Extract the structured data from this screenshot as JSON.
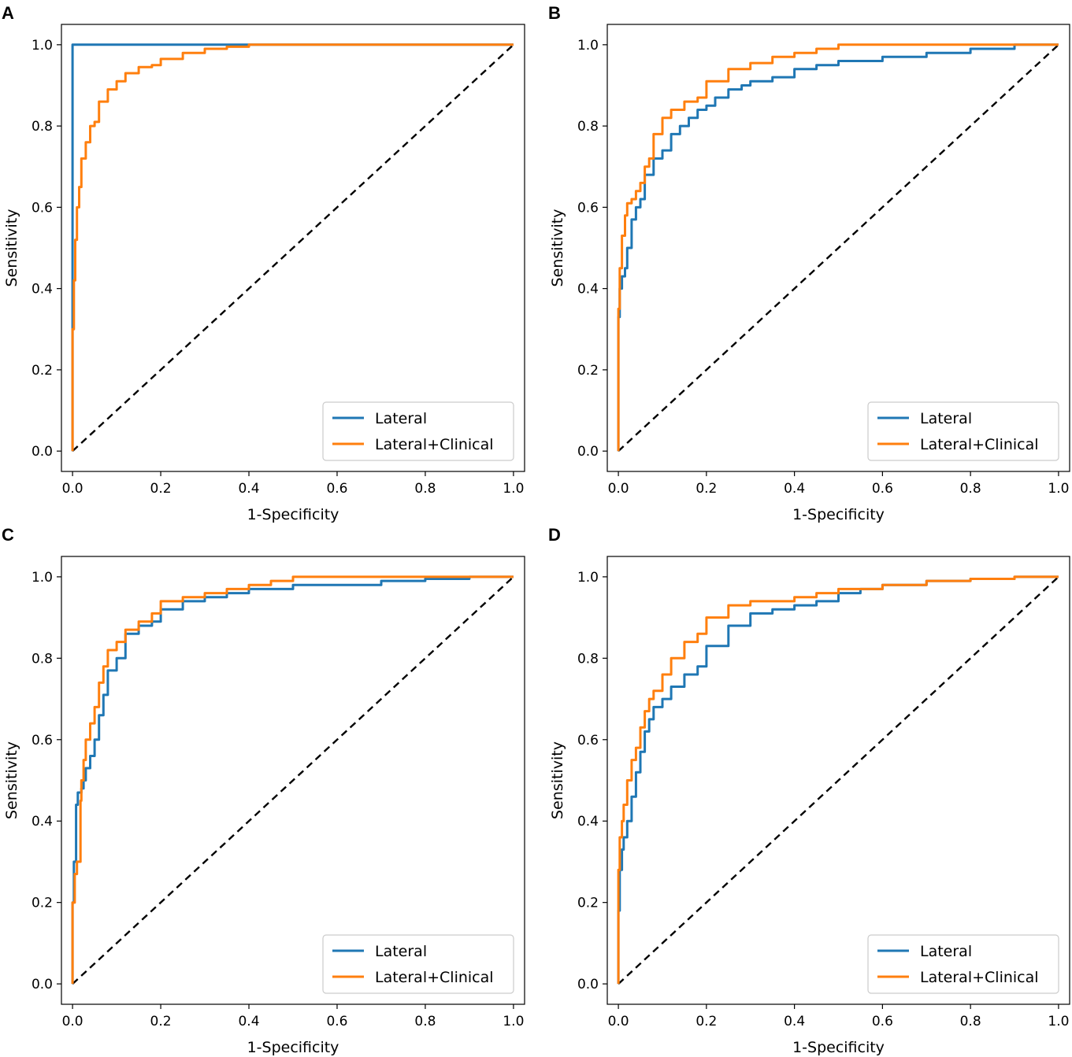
{
  "figure": {
    "colors": {
      "lateral": "#1f77b4",
      "lateral_clinical": "#ff7f0e",
      "chance": "#000000"
    }
  },
  "chart_data": [
    {
      "panel": "A",
      "type": "line",
      "xlabel": "1-Specificity",
      "ylabel": "Sensitivity",
      "xlim": [
        0,
        1
      ],
      "ylim": [
        0,
        1
      ],
      "xticks": [
        "0.0",
        "0.2",
        "0.4",
        "0.6",
        "0.8",
        "1.0"
      ],
      "yticks": [
        "0.0",
        "0.2",
        "0.4",
        "0.6",
        "0.8",
        "1.0"
      ],
      "legend": "bottom-right",
      "series": [
        {
          "name": "Lateral",
          "color": "#1f77b4",
          "x": [
            0,
            0,
            0.003,
            1
          ],
          "y": [
            0,
            1.0,
            1.0,
            1.0
          ]
        },
        {
          "name": "Lateral+Clinical",
          "color": "#ff7f0e",
          "x": [
            0,
            0.003,
            0.006,
            0.01,
            0.015,
            0.02,
            0.03,
            0.04,
            0.05,
            0.06,
            0.08,
            0.1,
            0.12,
            0.15,
            0.18,
            0.2,
            0.25,
            0.3,
            0.35,
            0.4,
            0.5,
            0.6,
            0.8,
            1.0
          ],
          "y": [
            0,
            0.3,
            0.42,
            0.52,
            0.6,
            0.65,
            0.72,
            0.76,
            0.8,
            0.81,
            0.86,
            0.89,
            0.91,
            0.93,
            0.945,
            0.95,
            0.965,
            0.98,
            0.99,
            0.995,
            1.0,
            1.0,
            1.0,
            1.0
          ]
        }
      ]
    },
    {
      "panel": "B",
      "type": "line",
      "xlabel": "1-Specificity",
      "ylabel": "Sensitivity",
      "xlim": [
        0,
        1
      ],
      "ylim": [
        0,
        1
      ],
      "xticks": [
        "0.0",
        "0.2",
        "0.4",
        "0.6",
        "0.8",
        "1.0"
      ],
      "yticks": [
        "0.0",
        "0.2",
        "0.4",
        "0.6",
        "0.8",
        "1.0"
      ],
      "legend": "bottom-right",
      "series": [
        {
          "name": "Lateral",
          "color": "#1f77b4",
          "x": [
            0,
            0.003,
            0.008,
            0.015,
            0.02,
            0.03,
            0.04,
            0.05,
            0.06,
            0.08,
            0.1,
            0.12,
            0.14,
            0.16,
            0.18,
            0.2,
            0.22,
            0.25,
            0.28,
            0.3,
            0.35,
            0.4,
            0.45,
            0.5,
            0.6,
            0.7,
            0.8,
            0.9,
            1.0
          ],
          "y": [
            0,
            0.33,
            0.4,
            0.43,
            0.45,
            0.5,
            0.57,
            0.6,
            0.62,
            0.68,
            0.72,
            0.74,
            0.78,
            0.8,
            0.82,
            0.84,
            0.85,
            0.87,
            0.89,
            0.9,
            0.91,
            0.92,
            0.94,
            0.95,
            0.96,
            0.97,
            0.98,
            0.99,
            1.0
          ]
        },
        {
          "name": "Lateral+Clinical",
          "color": "#ff7f0e",
          "x": [
            0,
            0.003,
            0.008,
            0.015,
            0.02,
            0.03,
            0.04,
            0.05,
            0.06,
            0.07,
            0.08,
            0.1,
            0.12,
            0.15,
            0.18,
            0.2,
            0.25,
            0.3,
            0.35,
            0.4,
            0.45,
            0.5,
            0.6,
            0.7,
            0.8,
            1.0
          ],
          "y": [
            0,
            0.35,
            0.45,
            0.53,
            0.58,
            0.61,
            0.62,
            0.64,
            0.66,
            0.7,
            0.72,
            0.78,
            0.82,
            0.84,
            0.86,
            0.87,
            0.91,
            0.94,
            0.955,
            0.97,
            0.98,
            0.99,
            1.0,
            1.0,
            1.0,
            1.0
          ]
        }
      ]
    },
    {
      "panel": "C",
      "type": "line",
      "xlabel": "1-Specificity",
      "ylabel": "Sensitivity",
      "xlim": [
        0,
        1
      ],
      "ylim": [
        0,
        1
      ],
      "xticks": [
        "0.0",
        "0.2",
        "0.4",
        "0.6",
        "0.8",
        "1.0"
      ],
      "yticks": [
        "0.0",
        "0.2",
        "0.4",
        "0.6",
        "0.8",
        "1.0"
      ],
      "legend": "bottom-right",
      "series": [
        {
          "name": "Lateral",
          "color": "#1f77b4",
          "x": [
            0,
            0.003,
            0.008,
            0.012,
            0.02,
            0.025,
            0.03,
            0.04,
            0.05,
            0.06,
            0.07,
            0.08,
            0.1,
            0.12,
            0.15,
            0.18,
            0.2,
            0.25,
            0.3,
            0.35,
            0.4,
            0.45,
            0.5,
            0.6,
            0.7,
            0.8,
            0.9,
            1.0
          ],
          "y": [
            0,
            0.2,
            0.3,
            0.44,
            0.47,
            0.48,
            0.5,
            0.53,
            0.56,
            0.6,
            0.66,
            0.71,
            0.77,
            0.8,
            0.86,
            0.88,
            0.89,
            0.92,
            0.94,
            0.95,
            0.96,
            0.97,
            0.97,
            0.98,
            0.98,
            0.99,
            0.995,
            1.0
          ]
        },
        {
          "name": "Lateral+Clinical",
          "color": "#ff7f0e",
          "x": [
            0,
            0.005,
            0.01,
            0.018,
            0.02,
            0.025,
            0.03,
            0.04,
            0.05,
            0.06,
            0.07,
            0.08,
            0.1,
            0.12,
            0.15,
            0.18,
            0.2,
            0.25,
            0.3,
            0.35,
            0.4,
            0.45,
            0.5,
            0.6,
            0.8,
            1.0
          ],
          "y": [
            0,
            0.2,
            0.27,
            0.3,
            0.45,
            0.5,
            0.55,
            0.6,
            0.64,
            0.68,
            0.74,
            0.78,
            0.82,
            0.84,
            0.87,
            0.89,
            0.91,
            0.94,
            0.95,
            0.96,
            0.97,
            0.98,
            0.99,
            1.0,
            1.0,
            1.0
          ]
        }
      ]
    },
    {
      "panel": "D",
      "type": "line",
      "xlabel": "1-Specificity",
      "ylabel": "Sensitivity",
      "xlim": [
        0,
        1
      ],
      "ylim": [
        0,
        1
      ],
      "xticks": [
        "0.0",
        "0.2",
        "0.4",
        "0.6",
        "0.8",
        "1.0"
      ],
      "yticks": [
        "0.0",
        "0.2",
        "0.4",
        "0.6",
        "0.8",
        "1.0"
      ],
      "legend": "bottom-right",
      "series": [
        {
          "name": "Lateral",
          "color": "#1f77b4",
          "x": [
            0,
            0.003,
            0.008,
            0.012,
            0.02,
            0.03,
            0.04,
            0.05,
            0.06,
            0.07,
            0.08,
            0.1,
            0.12,
            0.15,
            0.18,
            0.2,
            0.25,
            0.3,
            0.35,
            0.4,
            0.45,
            0.5,
            0.55,
            0.6,
            0.7,
            0.8,
            0.9,
            1.0
          ],
          "y": [
            0,
            0.18,
            0.28,
            0.33,
            0.36,
            0.4,
            0.46,
            0.52,
            0.57,
            0.62,
            0.65,
            0.68,
            0.7,
            0.73,
            0.76,
            0.78,
            0.83,
            0.88,
            0.91,
            0.92,
            0.93,
            0.94,
            0.96,
            0.97,
            0.98,
            0.99,
            0.995,
            1.0
          ]
        },
        {
          "name": "Lateral+Clinical",
          "color": "#ff7f0e",
          "x": [
            0,
            0.003,
            0.008,
            0.012,
            0.02,
            0.03,
            0.04,
            0.05,
            0.06,
            0.07,
            0.08,
            0.1,
            0.12,
            0.15,
            0.18,
            0.2,
            0.25,
            0.3,
            0.35,
            0.4,
            0.45,
            0.5,
            0.6,
            0.7,
            0.8,
            0.9,
            1.0
          ],
          "y": [
            0,
            0.28,
            0.36,
            0.4,
            0.44,
            0.5,
            0.55,
            0.58,
            0.63,
            0.67,
            0.7,
            0.72,
            0.76,
            0.8,
            0.84,
            0.86,
            0.9,
            0.93,
            0.94,
            0.94,
            0.95,
            0.96,
            0.97,
            0.98,
            0.99,
            0.995,
            1.0
          ]
        }
      ]
    }
  ]
}
